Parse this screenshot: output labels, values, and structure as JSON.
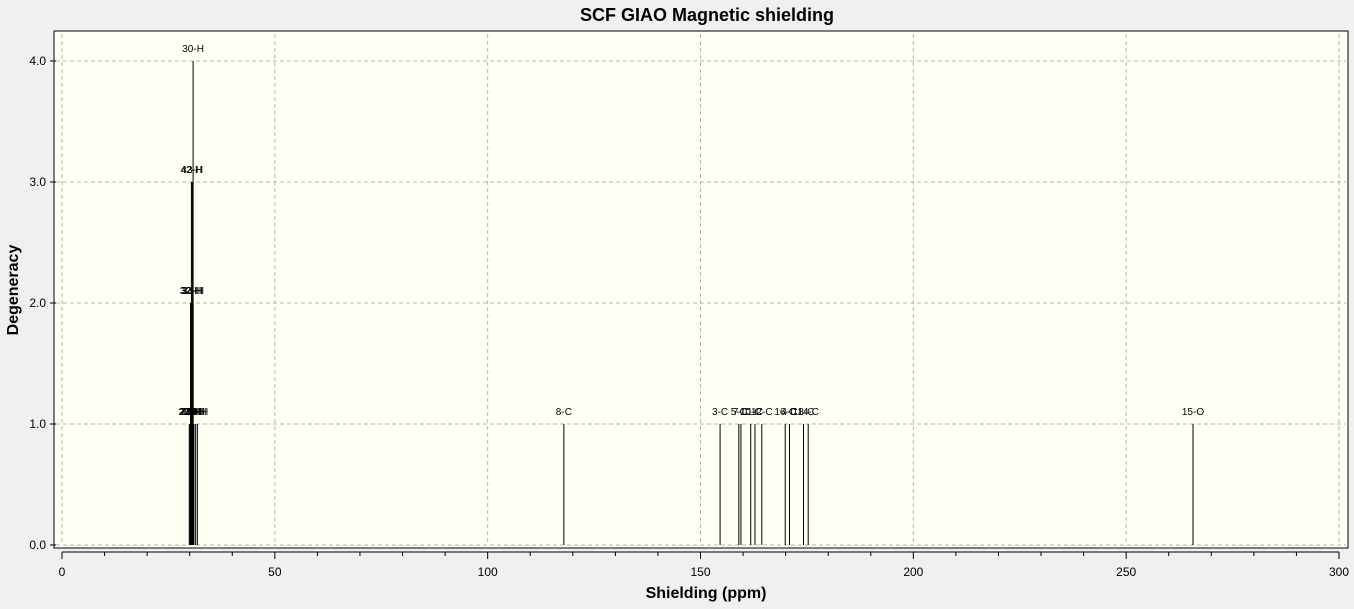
{
  "chart_data": {
    "type": "bar",
    "title": "SCF GIAO Magnetic shielding",
    "xlabel": "Shielding (ppm)",
    "ylabel": "Degeneracy",
    "xlim": [
      0,
      300
    ],
    "ylim": [
      0,
      4.0
    ],
    "x_ticks": [
      "0",
      "50",
      "100",
      "150",
      "200",
      "250",
      "300"
    ],
    "y_ticks": [
      "0.0",
      "1.0",
      "2.0",
      "3.0",
      "4.0"
    ],
    "grid": true,
    "plot_background": "#fffff5",
    "series": [
      {
        "peaks": [
          {
            "x": 29.9,
            "y": 1,
            "label": "22-H"
          },
          {
            "x": 30.1,
            "y": 1,
            "label": "23-H"
          },
          {
            "x": 30.3,
            "y": 1,
            "label": "24-H"
          },
          {
            "x": 30.6,
            "y": 1,
            "label": "25-H"
          },
          {
            "x": 31.0,
            "y": 1,
            "label": "26-H"
          },
          {
            "x": 31.4,
            "y": 1,
            "label": "27-H"
          },
          {
            "x": 31.8,
            "y": 1,
            "label": "28-H"
          },
          {
            "x": 30.2,
            "y": 2,
            "label": "32-H"
          },
          {
            "x": 30.5,
            "y": 2,
            "label": "33-H"
          },
          {
            "x": 30.8,
            "y": 2,
            "label": "34-H"
          },
          {
            "x": 30.4,
            "y": 3,
            "label": "42-H"
          },
          {
            "x": 30.6,
            "y": 3,
            "label": "43-H"
          },
          {
            "x": 30.8,
            "y": 4,
            "label": "30-H"
          },
          {
            "x": 117.9,
            "y": 1,
            "label": "8-C"
          },
          {
            "x": 154.6,
            "y": 1,
            "label": "3-C"
          },
          {
            "x": 159.0,
            "y": 1,
            "label": "5-C"
          },
          {
            "x": 159.5,
            "y": 1,
            "label": "7-C"
          },
          {
            "x": 161.8,
            "y": 1,
            "label": "10-C"
          },
          {
            "x": 162.8,
            "y": 1,
            "label": "1-C"
          },
          {
            "x": 164.4,
            "y": 1,
            "label": "12-C"
          },
          {
            "x": 169.9,
            "y": 1,
            "label": "16-C"
          },
          {
            "x": 170.9,
            "y": 1,
            "label": "4-C"
          },
          {
            "x": 174.2,
            "y": 1,
            "label": "18-C"
          },
          {
            "x": 175.3,
            "y": 1,
            "label": "14-C"
          },
          {
            "x": 265.7,
            "y": 1,
            "label": "15-O"
          }
        ]
      }
    ]
  }
}
